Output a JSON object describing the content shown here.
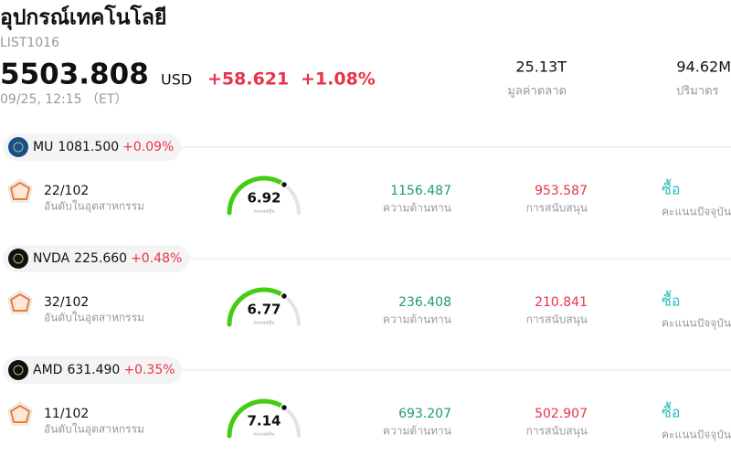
{
  "header": {
    "title": "อุปกรณ์เทคโนโลยี",
    "code": "LIST1016",
    "price": "5503.808",
    "currency": "USD",
    "change": "+58.621",
    "change_pct": "+1.08%",
    "time": "09/25, 12:15 （ET）",
    "market_cap": "25.13T",
    "market_cap_label": "มูลค่าตลาด",
    "volume": "94.62M",
    "volume_label": "ปริมาตร"
  },
  "stocks": [
    {
      "ticker": "MU",
      "price": "1081.500",
      "change": "+0.09%",
      "rank": "22/102",
      "rank_label": "อันดับในอุตสาหกรรม",
      "score": "6.92",
      "score_label": "คะแนนหุ้น",
      "resistance": "1156.487",
      "resistance_label": "ความต้านทาน",
      "support": "953.587",
      "support_label": "การสนับสนุน",
      "signal": "ซื้อ",
      "signal_label": "คะแนนปัจจุบัน"
    },
    {
      "ticker": "NVDA",
      "price": "225.660",
      "change": "+0.48%",
      "rank": "32/102",
      "rank_label": "อันดับในอุตสาหกรรม",
      "score": "6.77",
      "score_label": "คะแนนหุ้น",
      "resistance": "236.408",
      "resistance_label": "ความต้านทาน",
      "support": "210.841",
      "support_label": "การสนับสนุน",
      "signal": "ซื้อ",
      "signal_label": "คะแนนปัจจุบัน"
    },
    {
      "ticker": "AMD",
      "price": "631.490",
      "change": "+0.35%",
      "rank": "11/102",
      "rank_label": "อันดับในอุตสาหกรรม",
      "score": "7.14",
      "score_label": "คะแนนหุ้น",
      "resistance": "693.207",
      "resistance_label": "ความต้านทาน",
      "support": "502.907",
      "support_label": "การสนับสนุน",
      "signal": "ซื้อ",
      "signal_label": "คะแนนปัจจุบัน"
    }
  ]
}
